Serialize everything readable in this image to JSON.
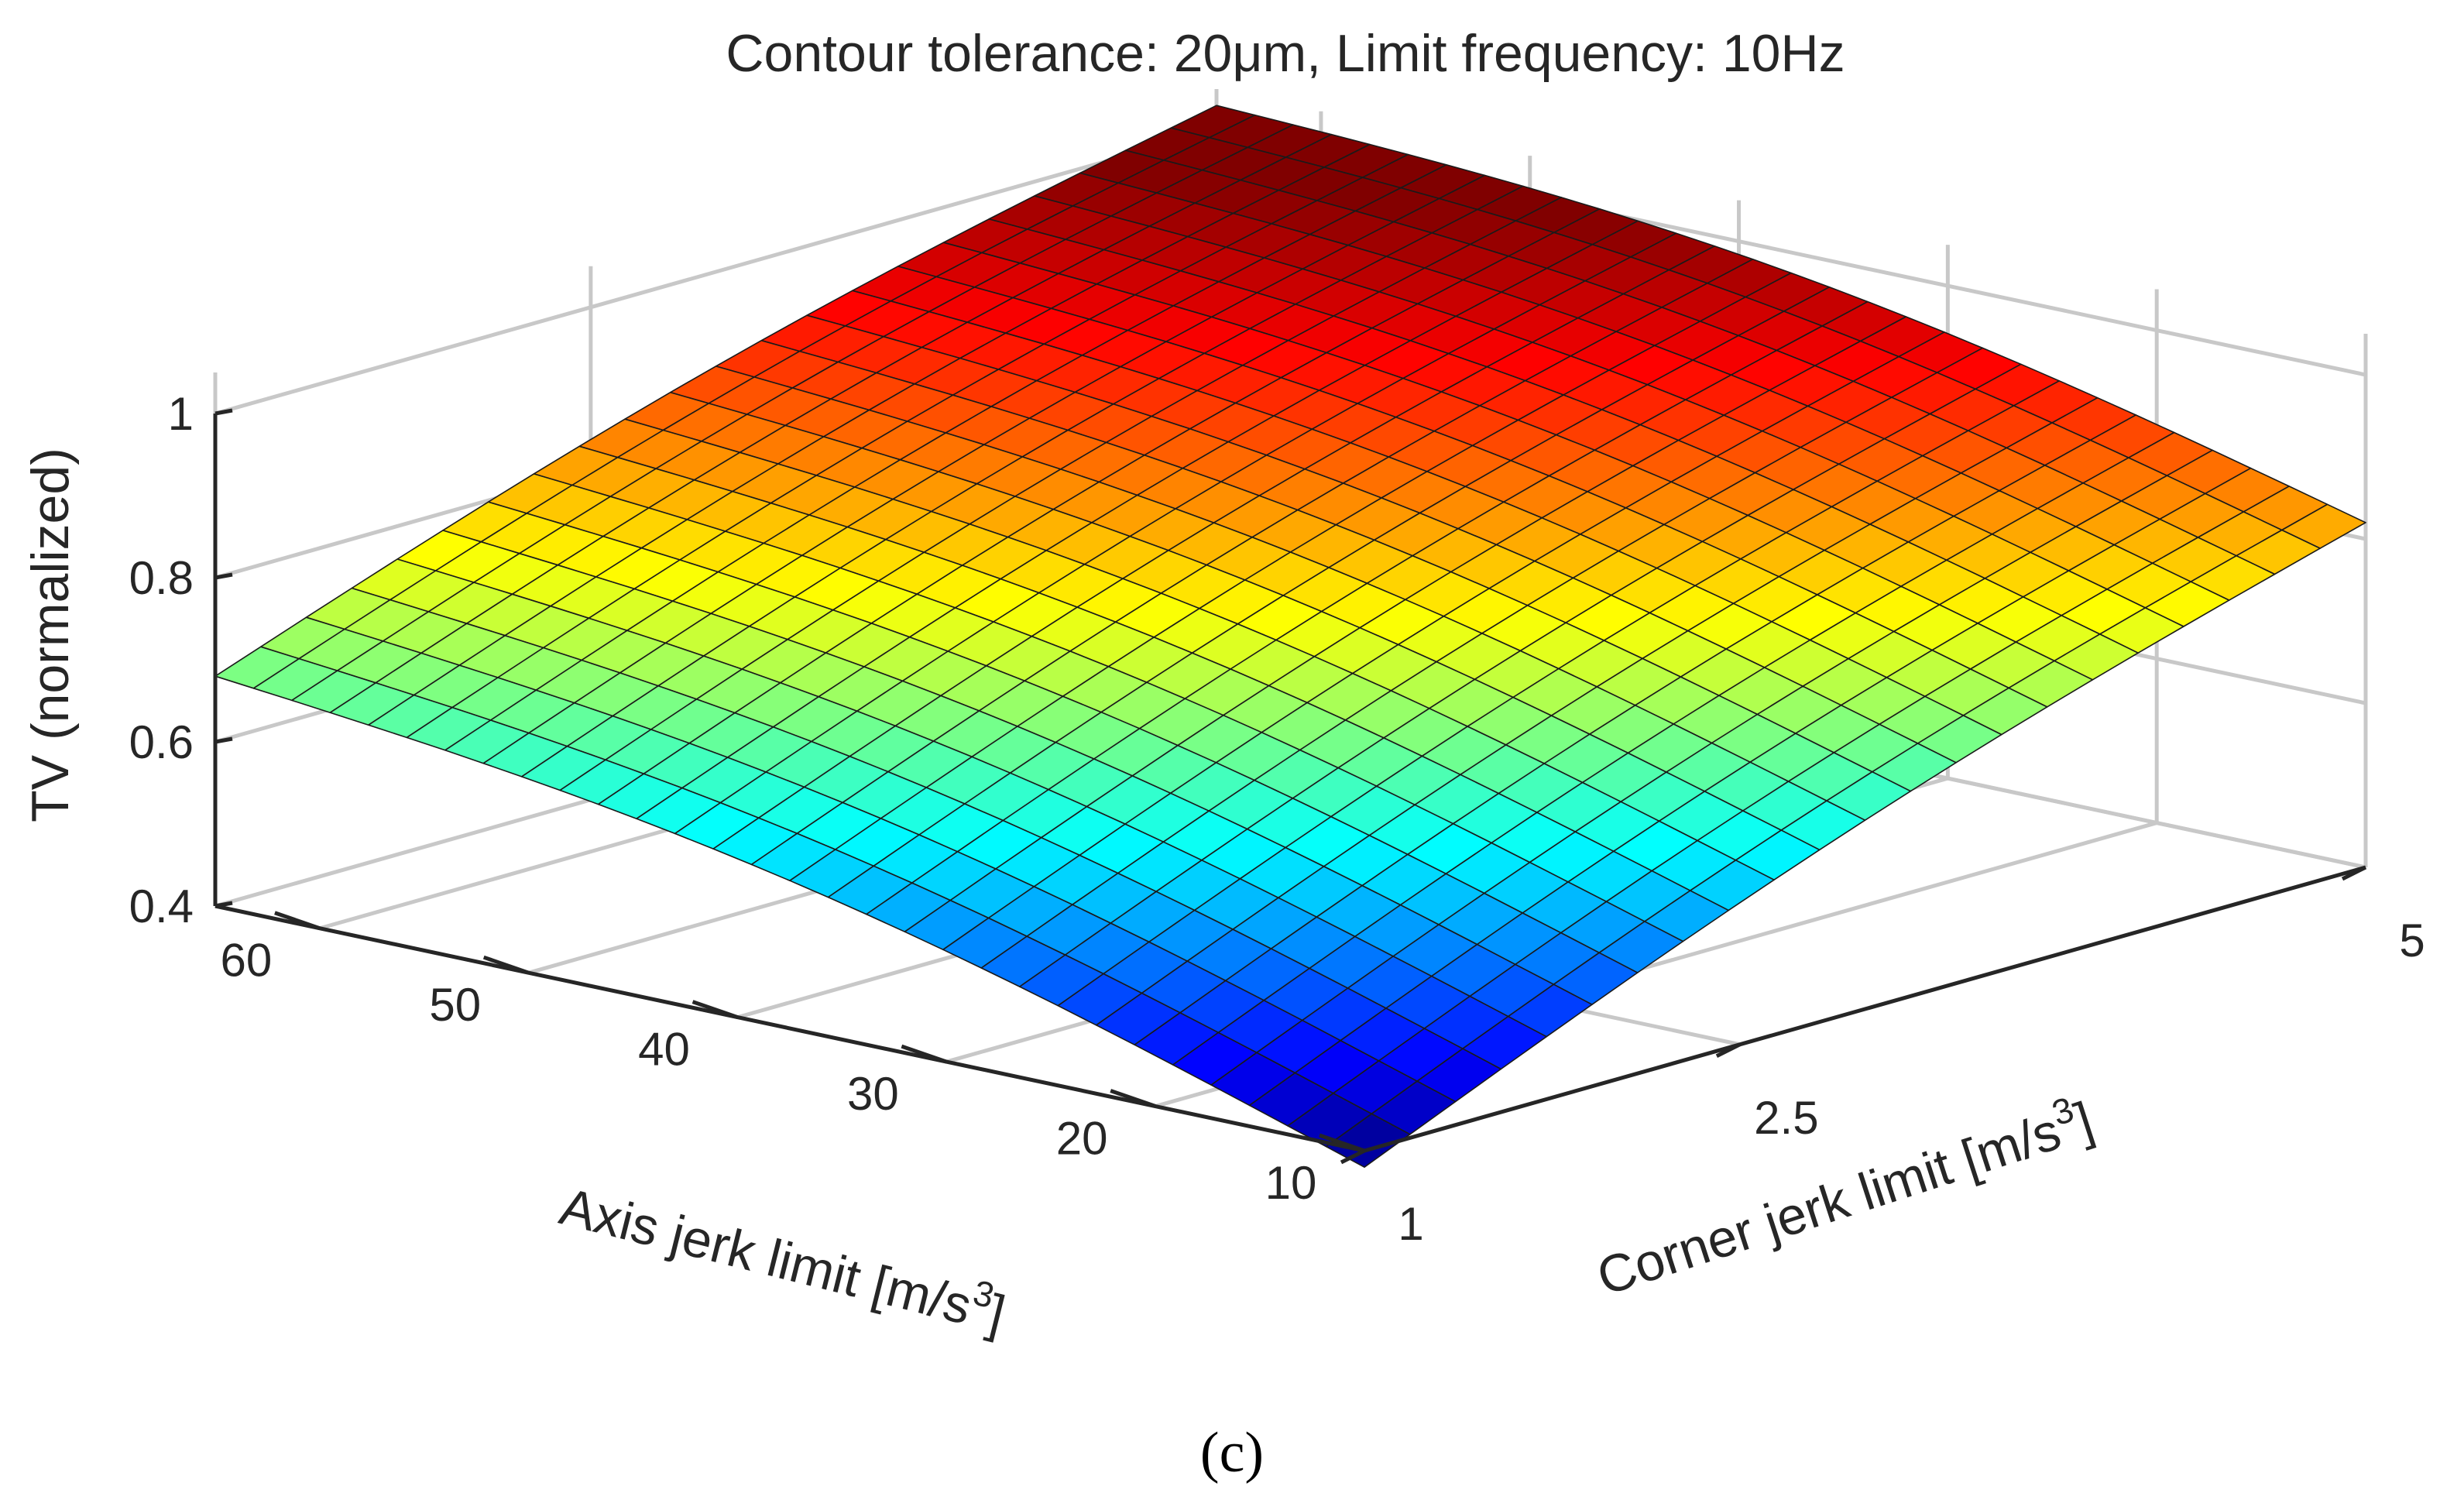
{
  "chart_data": {
    "type": "surface",
    "title": "Contour tolerance: 20μm, Limit frequency: 10Hz",
    "xlabel": "Axis jerk limit [m/s^3]",
    "xlabel_text": "Axis jerk limit [m/s",
    "xlabel_sup": "3",
    "xlabel_close": "]",
    "ylabel": "Corner jerk limit [m/s^3]",
    "ylabel_text": "Corner jerk limit [m/s",
    "ylabel_sup": "3",
    "ylabel_close": "]",
    "zlabel": "TV (normalized)",
    "x_range": [
      10,
      65
    ],
    "y_range": [
      1,
      5
    ],
    "zlim": [
      0.4,
      1.05
    ],
    "x_ticks": [
      60,
      50,
      40,
      30,
      20,
      10
    ],
    "x_tick_labels": [
      "60",
      "50",
      "40",
      "30",
      "20",
      "10"
    ],
    "y_ticks": [
      1,
      2.5,
      5
    ],
    "y_tick_labels": [
      "1",
      "2.5",
      "5"
    ],
    "z_ticks": [
      0.4,
      0.6,
      0.8,
      1
    ],
    "z_tick_labels": [
      "0.4",
      "0.6",
      "0.8",
      "1"
    ],
    "grid": true,
    "colormap": "jet",
    "color_range": [
      0.38,
      1.0
    ],
    "corner_values": {
      "x65_y1": 0.68,
      "x10_y1": 0.38,
      "x65_y5": 1.03,
      "x10_y5": 0.82
    },
    "grid_resolution": [
      30,
      22
    ]
  },
  "panel_label": "(c)"
}
